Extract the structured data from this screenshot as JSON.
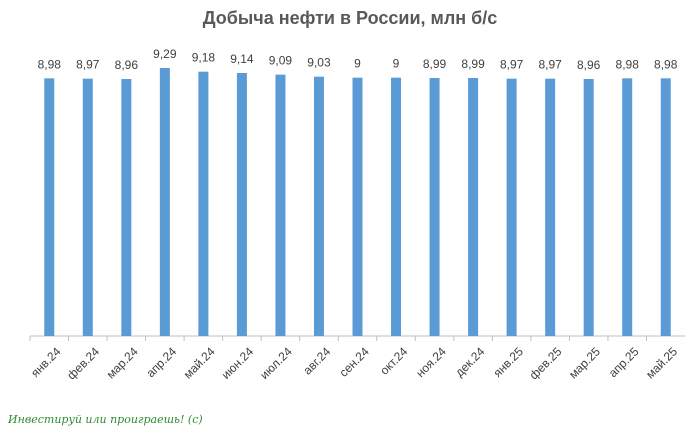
{
  "colors": {
    "bar": "#5b9bd5",
    "axis": "#bfbfbf",
    "text": "#404040",
    "title": "#595959",
    "watermark": "#2e8b2e"
  },
  "chart_data": {
    "type": "bar",
    "title": "Добыча нефти в России, млн б/с",
    "xlabel": "",
    "ylabel": "",
    "categories": [
      "янв.24",
      "фев.24",
      "мар.24",
      "апр.24",
      "май.24",
      "июн.24",
      "июл.24",
      "авг.24",
      "сен.24",
      "окт.24",
      "ноя.24",
      "дек.24",
      "янв.25",
      "фев.25",
      "мар.25",
      "апр.25",
      "май.25"
    ],
    "values": [
      8.98,
      8.97,
      8.96,
      9.29,
      9.18,
      9.14,
      9.09,
      9.03,
      9,
      9,
      8.99,
      8.99,
      8.97,
      8.97,
      8.96,
      8.98,
      8.98
    ],
    "labels": [
      "8,98",
      "8,97",
      "8,96",
      "9,29",
      "9,18",
      "9,14",
      "9,09",
      "9,03",
      "9",
      "9",
      "8,99",
      "8,99",
      "8,97",
      "8,97",
      "8,96",
      "8,98",
      "8,98"
    ],
    "grid": false,
    "legend": "none"
  },
  "watermark": "Инвестируй или проиграешь! (с)"
}
